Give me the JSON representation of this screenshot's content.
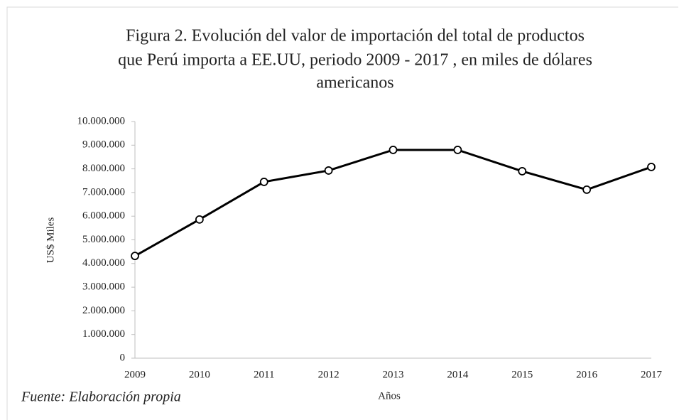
{
  "chart_data": {
    "type": "line",
    "title": [
      "Figura 2. Evolución del valor de importación del total de productos",
      "que Perú importa a EE.UU,  periodo 2009  - 2017 , en miles de dólares",
      "americanos"
    ],
    "x_label": "Años",
    "y_label": "US$ Miles",
    "note": "Fuente: Elaboración propia",
    "categories": [
      "2009",
      "2010",
      "2011",
      "2012",
      "2013",
      "2014",
      "2015",
      "2016",
      "2017"
    ],
    "values": [
      4320000,
      5860000,
      7450000,
      7930000,
      8800000,
      8800000,
      7900000,
      7120000,
      8080000
    ],
    "color": "#000000",
    "ylim": [
      0,
      10000000
    ],
    "yticks": [
      0,
      {
        "value": 1000000,
        "label": "1.000.000"
      },
      {
        "value": 2000000,
        "label": "2.000.000"
      },
      {
        "value": 3000000,
        "label": "3.000.000"
      },
      {
        "value": 4000000,
        "label": "4.000.000"
      },
      {
        "value": 5000000,
        "label": "5.000.000"
      },
      {
        "value": 6000000,
        "label": "6.000.000"
      },
      {
        "value": 7000000,
        "label": "7.000.000"
      },
      {
        "value": 8000000,
        "label": "8.000.000"
      },
      {
        "value": 9000000,
        "label": "9.000.000"
      },
      {
        "value": 10000000,
        "label": "10.000.000"
      }
    ],
    "grid": false
  }
}
